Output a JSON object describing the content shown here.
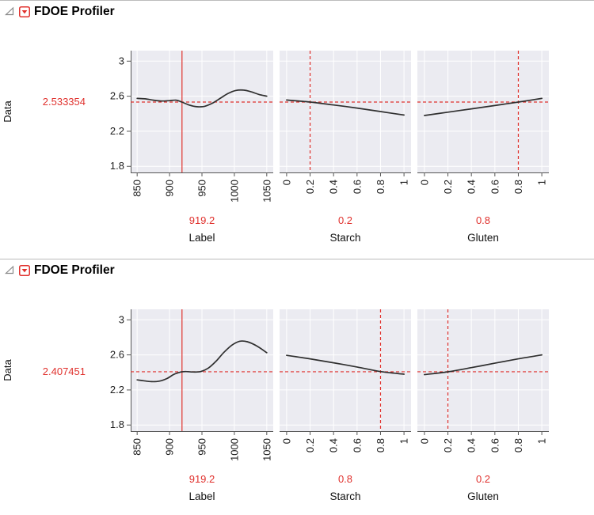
{
  "colors": {
    "accent_red": "#e0312d",
    "plot_bg": "#ebebf1",
    "grid": "#ffffff",
    "axis": "#555555",
    "curve": "#2f2f2f"
  },
  "chart_data": [
    {
      "type": "line",
      "title": "FDOE Profiler",
      "ylabel": "Data",
      "predicted_label": "2.533354",
      "predicted_value": 2.533354,
      "ylim": [
        1.73,
        3.12
      ],
      "ytick_values": [
        1.8,
        2.2,
        2.6,
        3
      ],
      "ytick_labels": [
        "1.8",
        "2.2",
        "2.6",
        "3"
      ],
      "cells": [
        {
          "factor": "Label",
          "current_label": "919.2",
          "current_value": 919.2,
          "vline_style": "solid",
          "xlim": [
            840,
            1060
          ],
          "xtick_values": [
            850,
            900,
            950,
            1000,
            1050
          ],
          "xtick_labels": [
            "850",
            "900",
            "950",
            "1000",
            "1050"
          ],
          "curve_x": [
            850,
            862,
            875,
            888,
            900,
            910,
            919,
            930,
            942,
            954,
            966,
            978,
            990,
            1002,
            1014,
            1026,
            1038,
            1050
          ],
          "curve_y": [
            2.575,
            2.57,
            2.555,
            2.545,
            2.55,
            2.555,
            2.533,
            2.5,
            2.48,
            2.485,
            2.52,
            2.575,
            2.63,
            2.665,
            2.67,
            2.65,
            2.62,
            2.6
          ]
        },
        {
          "factor": "Starch",
          "current_label": "0.2",
          "current_value": 0.2,
          "vline_style": "dashed",
          "xlim": [
            -0.06,
            1.06
          ],
          "xtick_values": [
            0,
            0.2,
            0.4,
            0.6,
            0.8,
            1
          ],
          "xtick_labels": [
            "0",
            "0.2",
            "0.4",
            "0.6",
            "0.8",
            "1"
          ],
          "curve_x": [
            0,
            0.2,
            0.4,
            0.6,
            0.8,
            1
          ],
          "curve_y": [
            2.557,
            2.533,
            2.5,
            2.465,
            2.425,
            2.385
          ]
        },
        {
          "factor": "Gluten",
          "current_label": "0.8",
          "current_value": 0.8,
          "vline_style": "dashed",
          "xlim": [
            -0.06,
            1.06
          ],
          "xtick_values": [
            0,
            0.2,
            0.4,
            0.6,
            0.8,
            1
          ],
          "xtick_labels": [
            "0",
            "0.2",
            "0.4",
            "0.6",
            "0.8",
            "1"
          ],
          "curve_x": [
            0,
            0.2,
            0.4,
            0.6,
            0.8,
            1
          ],
          "curve_y": [
            2.38,
            2.418,
            2.456,
            2.494,
            2.533,
            2.575
          ]
        }
      ]
    },
    {
      "type": "line",
      "title": "FDOE Profiler",
      "ylabel": "Data",
      "predicted_label": "2.407451",
      "predicted_value": 2.407451,
      "ylim": [
        1.73,
        3.12
      ],
      "ytick_values": [
        1.8,
        2.2,
        2.6,
        3
      ],
      "ytick_labels": [
        "1.8",
        "2.2",
        "2.6",
        "3"
      ],
      "cells": [
        {
          "factor": "Label",
          "current_label": "919.2",
          "current_value": 919.2,
          "vline_style": "solid",
          "xlim": [
            840,
            1060
          ],
          "xtick_values": [
            850,
            900,
            950,
            1000,
            1050
          ],
          "xtick_labels": [
            "850",
            "900",
            "950",
            "1000",
            "1050"
          ],
          "curve_x": [
            850,
            860,
            872,
            884,
            896,
            906,
            915,
            919,
            926,
            936,
            948,
            960,
            972,
            984,
            996,
            1008,
            1020,
            1035,
            1050
          ],
          "curve_y": [
            2.315,
            2.305,
            2.295,
            2.3,
            2.33,
            2.375,
            2.4,
            2.407,
            2.41,
            2.405,
            2.41,
            2.45,
            2.53,
            2.63,
            2.71,
            2.755,
            2.75,
            2.7,
            2.625
          ]
        },
        {
          "factor": "Starch",
          "current_label": "0.8",
          "current_value": 0.8,
          "vline_style": "dashed",
          "xlim": [
            -0.06,
            1.06
          ],
          "xtick_values": [
            0,
            0.2,
            0.4,
            0.6,
            0.8,
            1
          ],
          "xtick_labels": [
            "0",
            "0.2",
            "0.4",
            "0.6",
            "0.8",
            "1"
          ],
          "curve_x": [
            0,
            0.2,
            0.4,
            0.6,
            0.8,
            1
          ],
          "curve_y": [
            2.595,
            2.555,
            2.51,
            2.462,
            2.41,
            2.38
          ]
        },
        {
          "factor": "Gluten",
          "current_label": "0.2",
          "current_value": 0.2,
          "vline_style": "dashed",
          "xlim": [
            -0.06,
            1.06
          ],
          "xtick_values": [
            0,
            0.2,
            0.4,
            0.6,
            0.8,
            1
          ],
          "xtick_labels": [
            "0",
            "0.2",
            "0.4",
            "0.6",
            "0.8",
            "1"
          ],
          "curve_x": [
            0,
            0.2,
            0.4,
            0.6,
            0.8,
            1
          ],
          "curve_y": [
            2.375,
            2.407,
            2.455,
            2.505,
            2.555,
            2.6
          ]
        }
      ]
    }
  ]
}
